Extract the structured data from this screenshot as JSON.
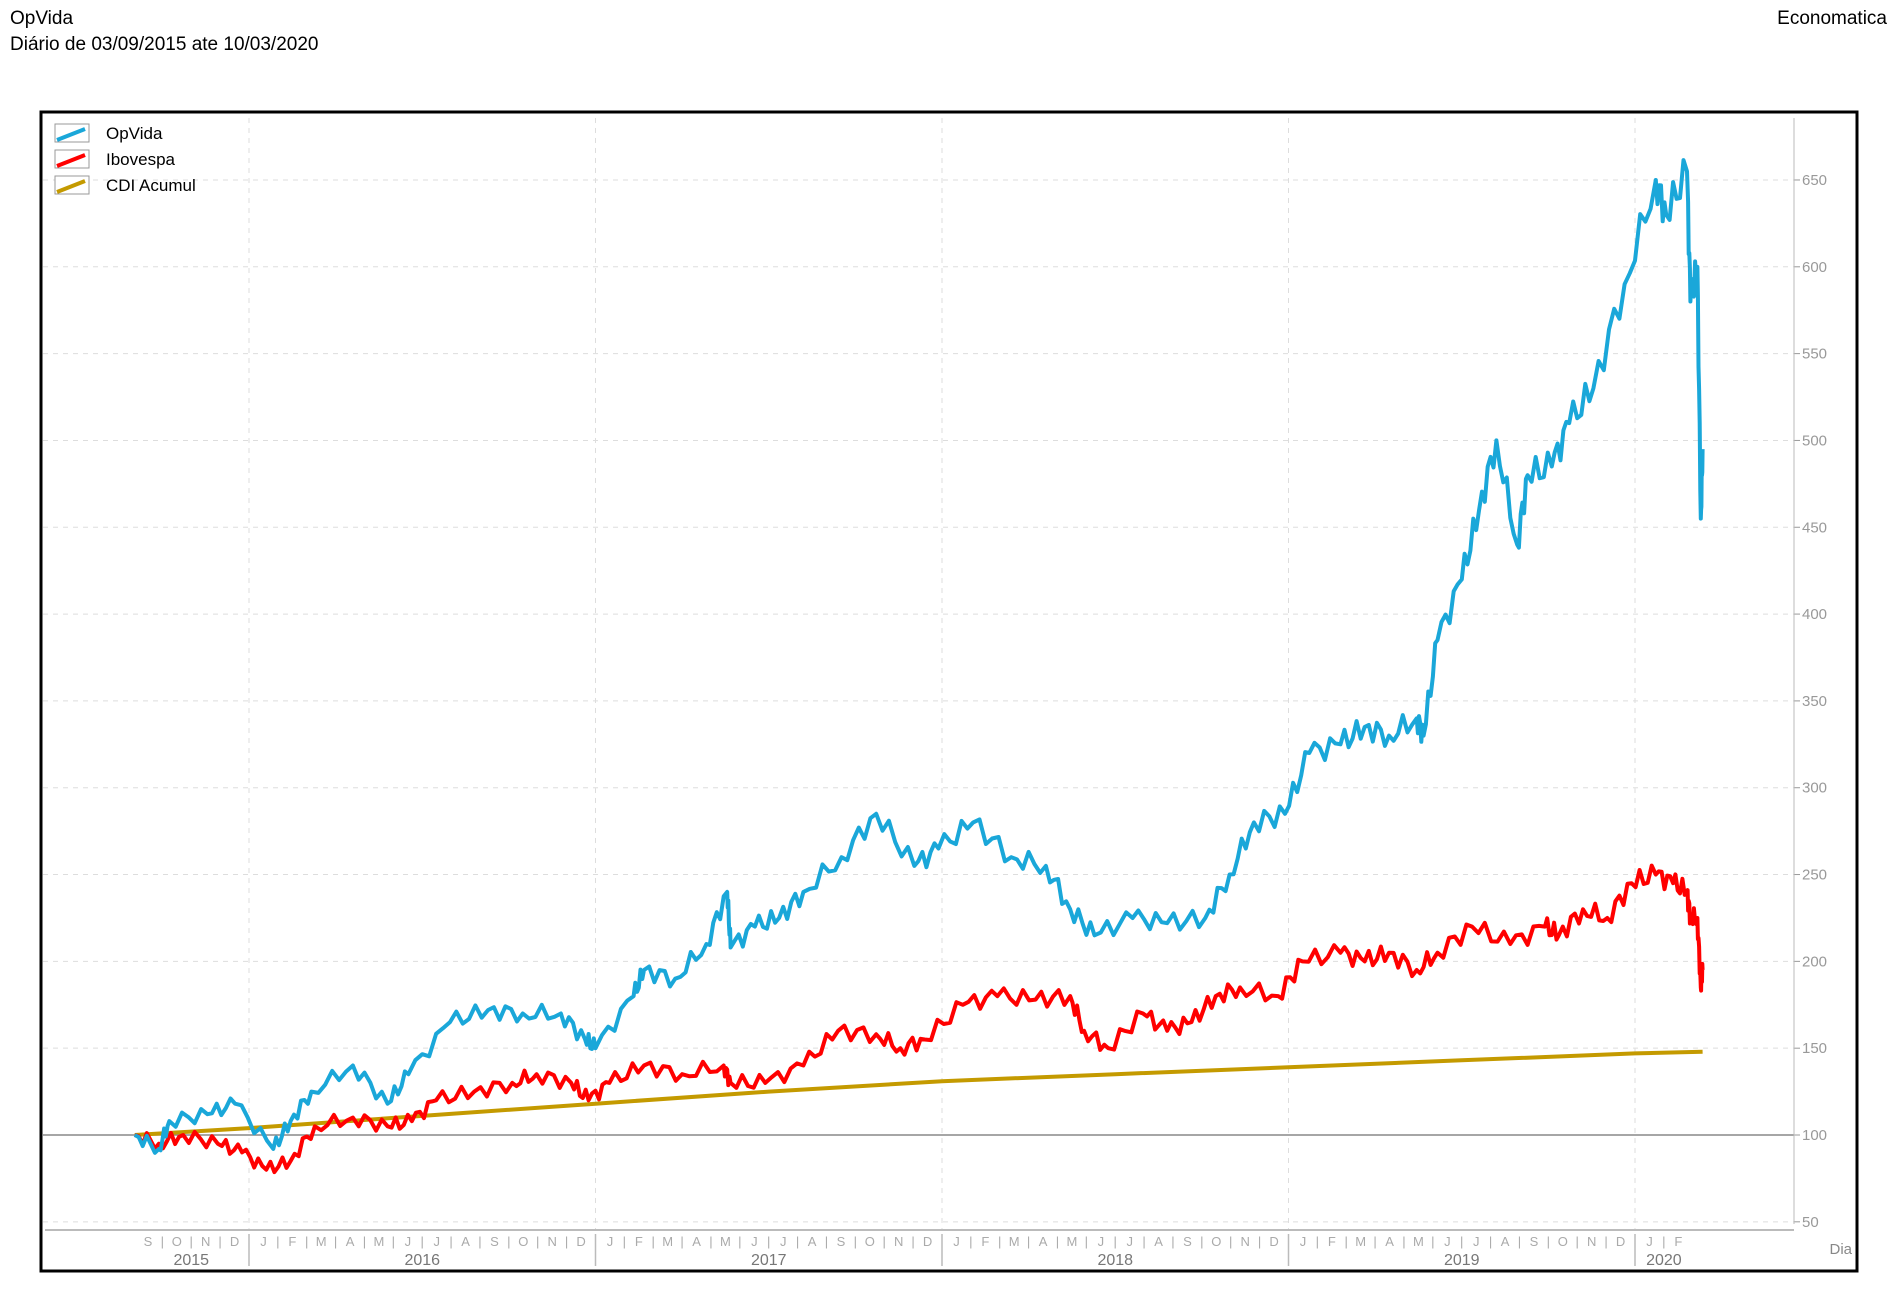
{
  "header": {
    "title": "OpVida",
    "subtitle": "Diário de 03/09/2015 ate 10/03/2020",
    "source": "Economatica"
  },
  "chart_data": {
    "type": "line",
    "title": "OpVida",
    "subtitle": "Diário de 03/09/2015 ate 10/03/2020",
    "xlabel": "Dia",
    "ylabel": "",
    "x_units": "decimal year",
    "xlim": [
      2015.67,
      2020.19
    ],
    "ylim": [
      50,
      675
    ],
    "yticks": [
      50,
      100,
      150,
      200,
      250,
      300,
      350,
      400,
      450,
      500,
      550,
      600,
      650
    ],
    "baseline": 100,
    "grid": true,
    "legend_position": "top-left",
    "years": [
      {
        "label": "2015",
        "months": [
          "S",
          "O",
          "N",
          "D"
        ],
        "start_month": 8
      },
      {
        "label": "2016",
        "months": [
          "J",
          "F",
          "M",
          "A",
          "M",
          "J",
          "J",
          "A",
          "S",
          "O",
          "N",
          "D"
        ],
        "start_month": 0
      },
      {
        "label": "2017",
        "months": [
          "J",
          "F",
          "M",
          "A",
          "M",
          "J",
          "J",
          "A",
          "S",
          "O",
          "N",
          "D"
        ],
        "start_month": 0
      },
      {
        "label": "2018",
        "months": [
          "J",
          "F",
          "M",
          "A",
          "M",
          "J",
          "J",
          "A",
          "S",
          "O",
          "N",
          "D"
        ],
        "start_month": 0
      },
      {
        "label": "2019",
        "months": [
          "J",
          "F",
          "M",
          "A",
          "M",
          "J",
          "J",
          "A",
          "S",
          "O",
          "N",
          "D"
        ],
        "start_month": 0
      },
      {
        "label": "2020",
        "months": [
          "J",
          "F"
        ],
        "start_month": 0
      }
    ],
    "series": [
      {
        "name": "OpVida",
        "color": "#1aa7d9",
        "x": [
          2015.67,
          2015.74,
          2015.77,
          2015.88,
          2015.96,
          2016.07,
          2016.12,
          2016.18,
          2016.3,
          2016.4,
          2016.46,
          2016.58,
          2016.69,
          2016.79,
          2016.9,
          2016.97,
          2017.0,
          2017.11,
          2017.14,
          2017.23,
          2017.32,
          2017.38,
          2017.39,
          2017.46,
          2017.53,
          2017.6,
          2017.71,
          2017.81,
          2017.92,
          2017.99,
          2018.09,
          2018.2,
          2018.3,
          2018.37,
          2018.44,
          2018.55,
          2018.65,
          2018.76,
          2018.83,
          2018.9,
          2018.99,
          2019.06,
          2019.15,
          2019.22,
          2019.29,
          2019.37,
          2019.39,
          2019.43,
          2019.5,
          2019.55,
          2019.6,
          2019.66,
          2019.69,
          2019.76,
          2019.81,
          2019.88,
          2019.97,
          2020.06,
          2020.09,
          2020.15,
          2020.16,
          2020.18,
          2020.19,
          2020.195
        ],
        "values": [
          100,
          92,
          108,
          112,
          118,
          92,
          108,
          125,
          140,
          118,
          135,
          165,
          172,
          170,
          170,
          155,
          150,
          180,
          195,
          190,
          210,
          240,
          208,
          220,
          225,
          240,
          260,
          285,
          255,
          265,
          280,
          260,
          255,
          230,
          215,
          225,
          222,
          225,
          250,
          280,
          285,
          320,
          325,
          335,
          330,
          340,
          330,
          385,
          420,
          460,
          500,
          440,
          480,
          485,
          510,
          530,
          590,
          650,
          630,
          655,
          580,
          600,
          455,
          495
        ]
      },
      {
        "name": "Ibovespa",
        "color": "#ff0000",
        "x": [
          2015.67,
          2015.74,
          2015.81,
          2015.91,
          2015.98,
          2016.05,
          2016.12,
          2016.19,
          2016.3,
          2016.4,
          2016.47,
          2016.54,
          2016.65,
          2016.76,
          2016.83,
          2016.93,
          2016.98,
          2017.04,
          2017.14,
          2017.25,
          2017.37,
          2017.39,
          2017.49,
          2017.6,
          2017.7,
          2017.81,
          2017.88,
          2017.95,
          2018.06,
          2018.16,
          2018.27,
          2018.37,
          2018.41,
          2018.48,
          2018.58,
          2018.65,
          2018.72,
          2018.79,
          2018.86,
          2018.97,
          2019.04,
          2019.15,
          2019.22,
          2019.29,
          2019.37,
          2019.43,
          2019.53,
          2019.64,
          2019.74,
          2019.78,
          2019.85,
          2019.92,
          2019.99,
          2020.06,
          2020.11,
          2020.15,
          2020.16,
          2020.18,
          2020.19,
          2020.195
        ],
        "values": [
          100,
          95,
          100,
          95,
          90,
          80,
          85,
          105,
          110,
          105,
          108,
          120,
          125,
          130,
          135,
          130,
          120,
          130,
          140,
          135,
          140,
          130,
          130,
          140,
          160,
          158,
          150,
          155,
          175,
          180,
          178,
          180,
          160,
          150,
          170,
          160,
          165,
          180,
          185,
          180,
          200,
          205,
          200,
          205,
          195,
          205,
          220,
          210,
          220,
          215,
          230,
          225,
          245,
          250,
          245,
          240,
          225,
          225,
          185,
          195
        ]
      },
      {
        "name": "CDI Acumul",
        "color": "#c49a00",
        "x": [
          2015.67,
          2016.0,
          2016.5,
          2017.0,
          2017.5,
          2018.0,
          2018.5,
          2019.0,
          2019.5,
          2020.0,
          2020.195
        ],
        "values": [
          100,
          104,
          111,
          118,
          125,
          131,
          135,
          139,
          143,
          147,
          148
        ]
      }
    ]
  }
}
